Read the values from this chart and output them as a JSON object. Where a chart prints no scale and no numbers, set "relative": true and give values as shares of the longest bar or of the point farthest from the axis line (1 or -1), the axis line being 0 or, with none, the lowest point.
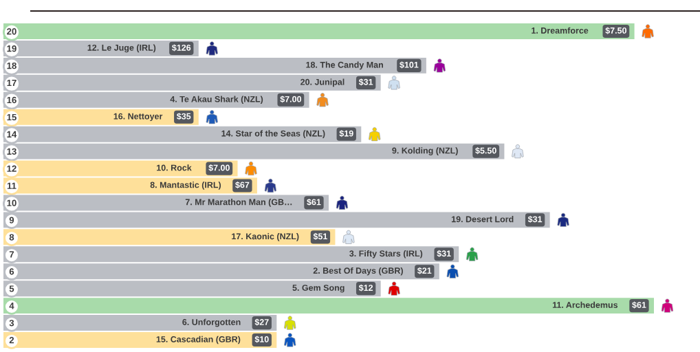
{
  "chart_data": {
    "type": "bar",
    "orientation": "horizontal",
    "relative": true,
    "categories": [
      "20",
      "19",
      "18",
      "17",
      "16",
      "15",
      "14",
      "13",
      "12",
      "11",
      "10",
      "9",
      "8",
      "7",
      "6",
      "5",
      "4",
      "3",
      "2"
    ],
    "values": [
      0.97,
      0.3,
      0.65,
      0.58,
      0.47,
      0.3,
      0.55,
      0.77,
      0.36,
      0.39,
      0.5,
      0.84,
      0.51,
      0.7,
      0.67,
      0.58,
      1.0,
      0.42,
      0.42
    ],
    "colors": [
      "#a8dbaa",
      "#bbbec4",
      "#bbbec4",
      "#bbbec4",
      "#bbbec4",
      "#fee09a",
      "#bbbec4",
      "#bbbec4",
      "#fee09a",
      "#fee09a",
      "#bbbec4",
      "#bbbec4",
      "#fee09a",
      "#bbbec4",
      "#bbbec4",
      "#bbbec4",
      "#a8dbaa",
      "#bbbec4",
      "#fee09a"
    ],
    "annotations": [
      "1. Dreamforce",
      "12. Le Juge (IRL)",
      "18. The Candy Man",
      "20. Junipal",
      "4. Te Akau Shark (NZL)",
      "16. Nettoyer",
      "14. Star of the Seas (NZL)",
      "9. Kolding (NZL)",
      "10. Rock",
      "8. Mantastic (IRL)",
      "7. Mr Marathon Man (GB…",
      "19. Desert Lord",
      "17. Kaonic (NZL)",
      "3. Fifty Stars (IRL)",
      "2. Best Of Days (GBR)",
      "5. Gem Song",
      "11. Archedemus",
      "6. Unforgotten",
      "15. Cascadian (GBR)",
      {
        "text": "$7.50",
        "x": 0.97,
        "y": "20"
      },
      {
        "text": "$126",
        "x": 0.3,
        "y": "19"
      },
      {
        "text": "$101",
        "x": 0.65,
        "y": "18"
      },
      {
        "text": "$31",
        "x": 0.58,
        "y": "17"
      },
      {
        "text": "$7.00",
        "x": 0.47,
        "y": "16"
      },
      {
        "text": "$35",
        "x": 0.3,
        "y": "15"
      },
      {
        "text": "$19",
        "x": 0.55,
        "y": "14"
      },
      {
        "text": "$5.50",
        "x": 0.77,
        "y": "13"
      },
      {
        "text": "$7.00",
        "x": 0.36,
        "y": "12"
      },
      {
        "text": "$67",
        "x": 0.39,
        "y": "11"
      },
      {
        "text": "$61",
        "x": 0.5,
        "y": "10"
      },
      {
        "text": "$31",
        "x": 0.84,
        "y": "9"
      },
      {
        "text": "$51",
        "x": 0.51,
        "y": "8"
      },
      {
        "text": "$31",
        "x": 0.7,
        "y": "7"
      },
      {
        "text": "$21",
        "x": 0.67,
        "y": "6"
      },
      {
        "text": "$12",
        "x": 0.58,
        "y": "5"
      },
      {
        "text": "$61",
        "x": 1.0,
        "y": "4"
      },
      {
        "text": "$27",
        "x": 0.42,
        "y": "3"
      },
      {
        "text": "$10",
        "x": 0.42,
        "y": "2"
      }
    ]
  }
}
